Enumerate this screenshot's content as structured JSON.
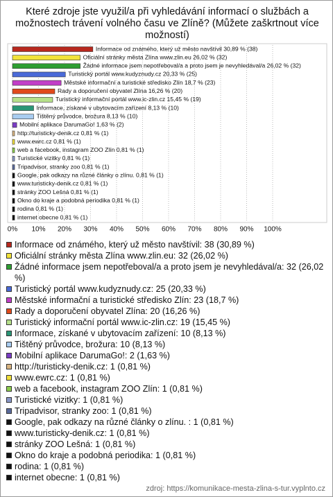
{
  "chart_data": {
    "type": "hbar",
    "title": "Které zdroje jste využil/a při vyhledávání informací o službách a možnostech trávení volného času ve Zlíně? (Můžete zaškrtnout více možností)",
    "values": [
      30.89,
      26.02,
      26.02,
      20.33,
      18.7,
      16.26,
      15.45,
      8.13,
      8.13,
      1.63,
      0.81,
      0.81,
      0.81,
      0.81,
      0.81,
      0.81,
      0.81,
      0.81,
      0.81,
      0.81,
      0.81
    ],
    "value_labels": [
      "Informace od známého, který už město navštívil 30,89 % (38)",
      "Oficiální stránky města Zlína www.zlin.eu 26,02 % (32)",
      "Žádné informace jsem nepotřeboval/a a proto jsem je nevyhledával/a 26,02 % (32)",
      "Turistický portál www.kudyznudy.cz 20,33 % (25)",
      "Městské informační a turistické středisko Zlín 18,7 % (23)",
      "Rady a doporučení obyvatel Zlína 16,26 % (20)",
      "Turistický informační portál www.ic-zlin.cz 15,45 % (19)",
      "Informace, získané v ubytovacím zařízení 8,13 % (10)",
      "Tištěný průvodce, brožura 8,13 % (10)",
      "Mobilní aplikace DarumaGo! 1,63 % (2)",
      "http://turisticky-denik.cz 0,81 % (1)",
      "www.ewrc.cz 0,81 % (1)",
      "web a facebook, instagram ZOO Zlín 0,81 % (1)",
      "Turistické vizitky 0,81 % (1)",
      "Tripadvisor, stranky zoo 0,81 % (1)",
      "Google, pak odkazy na různé články o zlínu.  0,81 % (1)",
      "www.turisticky-denik.cz 0,81 % (1)",
      "stránky ZOO Lešná 0,81 % (1)",
      "Okno do kraje a podobná periodika 0,81 % (1)",
      "rodina 0,81 % (1)",
      "internet obecne 0,81 % (1)"
    ],
    "legend_labels": [
      "Informace od známého, který už město navštívil: 38 (30,89 %)",
      "Oficiální stránky města Zlína www.zlin.eu: 32 (26,02 %)",
      "Žádné informace jsem nepotřeboval/a a proto jsem je nevyhledával/a: 32 (26,02 %)",
      "Turistický portál www.kudyznudy.cz: 25 (20,33 %)",
      "Městské informační a turistické středisko Zlín: 23 (18,7 %)",
      "Rady a doporučení obyvatel Zlína: 20 (16,26 %)",
      "Turistický informační portál www.ic-zlin.cz: 19 (15,45 %)",
      "Informace, získané v ubytovacím zařízení: 10 (8,13 %)",
      "Tištěný průvodce, brožura: 10 (8,13 %)",
      "Mobilní aplikace DarumaGo!: 2 (1,63 %)",
      "http://turisticky-denik.cz: 1 (0,81 %)",
      "www.ewrc.cz: 1 (0,81 %)",
      "web a facebook, instagram ZOO Zlín: 1 (0,81 %)",
      "Turistické vizitky: 1 (0,81 %)",
      "Tripadvisor, stranky zoo: 1 (0,81 %)",
      "Google, pak odkazy na různé články o zlínu. : 1 (0,81 %)",
      "www.turisticky-denik.cz: 1 (0,81 %)",
      "stránky ZOO Lešná: 1 (0,81 %)",
      "Okno do kraje a podobná periodika: 1 (0,81 %)",
      "rodina: 1 (0,81 %)",
      "internet obecne: 1 (0,81 %)"
    ],
    "colors": [
      "#b8281e",
      "#f2e33a",
      "#2e9e32",
      "#4a6ad8",
      "#c23ec8",
      "#e04a1c",
      "#b6e08a",
      "#2a9676",
      "#a8ccf0",
      "#7a3cc4",
      "#d8b482",
      "#f0df3a",
      "#8ccc4c",
      "#8a98c8",
      "#5a6a9c",
      "#111111",
      "#111111",
      "#111111",
      "#111111",
      "#111111",
      "#111111"
    ],
    "xlim": [
      0,
      100
    ],
    "xticks": [
      {
        "value": 0,
        "label": "0%"
      },
      {
        "value": 10,
        "label": "10%"
      },
      {
        "value": 20,
        "label": "20%"
      },
      {
        "value": 30,
        "label": "30%"
      },
      {
        "value": 40,
        "label": "40%"
      },
      {
        "value": 50,
        "label": "50%"
      },
      {
        "value": 60,
        "label": "60%"
      },
      {
        "value": 70,
        "label": "70%"
      },
      {
        "value": 80,
        "label": "80%"
      },
      {
        "value": 90,
        "label": "90%"
      },
      {
        "value": 100,
        "label": "100%"
      }
    ],
    "grid": true,
    "source": "zdroj: https://komunikace-mesta-zlina-s-tur.vyplnto.cz"
  }
}
